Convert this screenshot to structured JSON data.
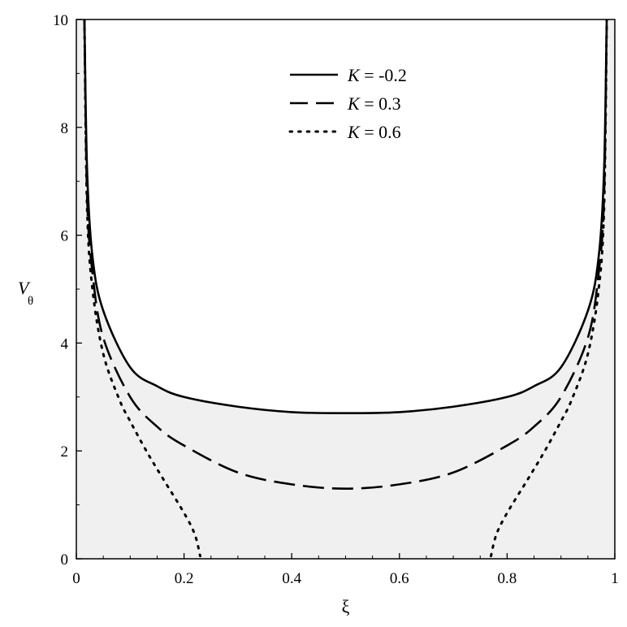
{
  "chart_data": {
    "type": "line",
    "title": "",
    "xlabel": "ξ",
    "ylabel": "V",
    "ylabel_subscript": "θ",
    "xlim": [
      0,
      1
    ],
    "ylim": [
      0,
      10
    ],
    "x_ticks": [
      0,
      0.2,
      0.4,
      0.6,
      0.8,
      1
    ],
    "x_tick_labels": [
      "0",
      "0.2",
      "0.4",
      "0.6",
      "0.8",
      "1"
    ],
    "y_ticks": [
      0,
      2,
      4,
      6,
      8,
      10
    ],
    "y_tick_labels": [
      "0",
      "2",
      "4",
      "6",
      "8",
      "10"
    ],
    "grid": false,
    "legend_position": "top-center",
    "shaded_region": {
      "color": "#f0f0f0",
      "boundary_series": "K = -0.2"
    },
    "series": [
      {
        "name": "K = -0.2",
        "legend_var": "K",
        "legend_value": "= -0.2",
        "style": "solid",
        "x": [
          0.015,
          0.02,
          0.03,
          0.05,
          0.1,
          0.15,
          0.2,
          0.3,
          0.4,
          0.5,
          0.6,
          0.7,
          0.8,
          0.85,
          0.9,
          0.95,
          0.97,
          0.98,
          0.985
        ],
        "y": [
          10.0,
          7.2,
          5.6,
          4.6,
          3.55,
          3.2,
          3.0,
          2.82,
          2.72,
          2.7,
          2.72,
          2.82,
          3.0,
          3.2,
          3.55,
          4.6,
          5.6,
          7.2,
          10.0
        ]
      },
      {
        "name": "K = 0.3",
        "legend_var": "K",
        "legend_value": "= 0.3",
        "style": "dashed",
        "x": [
          0.015,
          0.02,
          0.03,
          0.05,
          0.1,
          0.15,
          0.2,
          0.3,
          0.4,
          0.5,
          0.6,
          0.7,
          0.8,
          0.85,
          0.9,
          0.95,
          0.97,
          0.98,
          0.985
        ],
        "y": [
          10.0,
          6.7,
          5.3,
          4.1,
          3.0,
          2.45,
          2.1,
          1.6,
          1.38,
          1.3,
          1.38,
          1.6,
          2.1,
          2.45,
          3.0,
          4.1,
          5.3,
          6.7,
          10.0
        ]
      },
      {
        "name": "K = 0.6",
        "legend_var": "K",
        "legend_value": "= 0.6",
        "style": "dotted",
        "segments": [
          {
            "x": [
              0.015,
              0.02,
              0.03,
              0.05,
              0.08,
              0.1,
              0.13,
              0.16,
              0.2,
              0.22,
              0.23
            ],
            "y": [
              10.0,
              6.5,
              5.0,
              3.8,
              2.95,
              2.55,
              2.0,
              1.5,
              0.85,
              0.45,
              0.05
            ]
          },
          {
            "x": [
              0.77,
              0.78,
              0.8,
              0.84,
              0.87,
              0.9,
              0.92,
              0.95,
              0.97,
              0.98,
              0.985
            ],
            "y": [
              0.05,
              0.45,
              0.85,
              1.5,
              2.0,
              2.55,
              2.95,
              3.8,
              5.0,
              6.5,
              10.0
            ]
          }
        ]
      }
    ]
  }
}
